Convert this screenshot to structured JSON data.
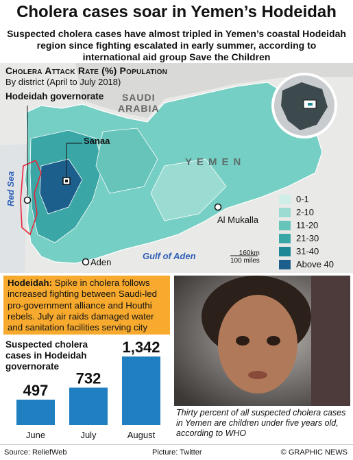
{
  "headline": "Cholera cases soar in Yemen’s Hodeidah",
  "deck": "Suspected cholera cases have almost tripled in Yemen’s coastal Hodeidah region since fighting escalated in early summer, according to international aid group Save the Children",
  "map": {
    "title": "Cholera Attack Rate (%) Population",
    "subtitle": "By district (April to July 2018)",
    "governorate_label": "Hodeidah governorate",
    "place_labels": {
      "saudi_line1": "SAUDI",
      "saudi_line2": "ARABIA",
      "yemen": "YEMEN",
      "sanaa": "Sanaa",
      "mukalla": "Al Mukalla",
      "aden": "Aden",
      "gulf": "Gulf of Aden",
      "red_sea": "Red Sea"
    },
    "scale": {
      "km": "160km",
      "miles": "100 miles"
    },
    "legend": [
      {
        "label": "0-1",
        "color": "#cfeee9"
      },
      {
        "label": "2-10",
        "color": "#9bdcd2"
      },
      {
        "label": "11-20",
        "color": "#66c4ba"
      },
      {
        "label": "21-30",
        "color": "#3aa7a6"
      },
      {
        "label": "31-40",
        "color": "#1f8896"
      },
      {
        "label": "Above 40",
        "color": "#1d5f8c"
      }
    ]
  },
  "callout": {
    "lead": "Hodeidah:",
    "text": " Spike in cholera follows increased fighting between Saudi-led pro-government alliance and Houthi rebels. July air raids damaged water and sanitation facilities serving city"
  },
  "chart_data": {
    "type": "bar",
    "title": "Suspected cholera cases in Hodeidah governorate",
    "categories": [
      "June",
      "July",
      "August"
    ],
    "values": [
      497,
      732,
      1342
    ],
    "value_labels": [
      "497",
      "732",
      "1,342"
    ],
    "color": "#1f7fc0"
  },
  "photo_caption": "Thirty percent of all suspected cholera cases in Yemen are children under five years old, according to WHO",
  "footer": {
    "source": "Source: ReliefWeb",
    "picture": "Picture: Twitter",
    "copyright": "© GRAPHIC NEWS"
  }
}
